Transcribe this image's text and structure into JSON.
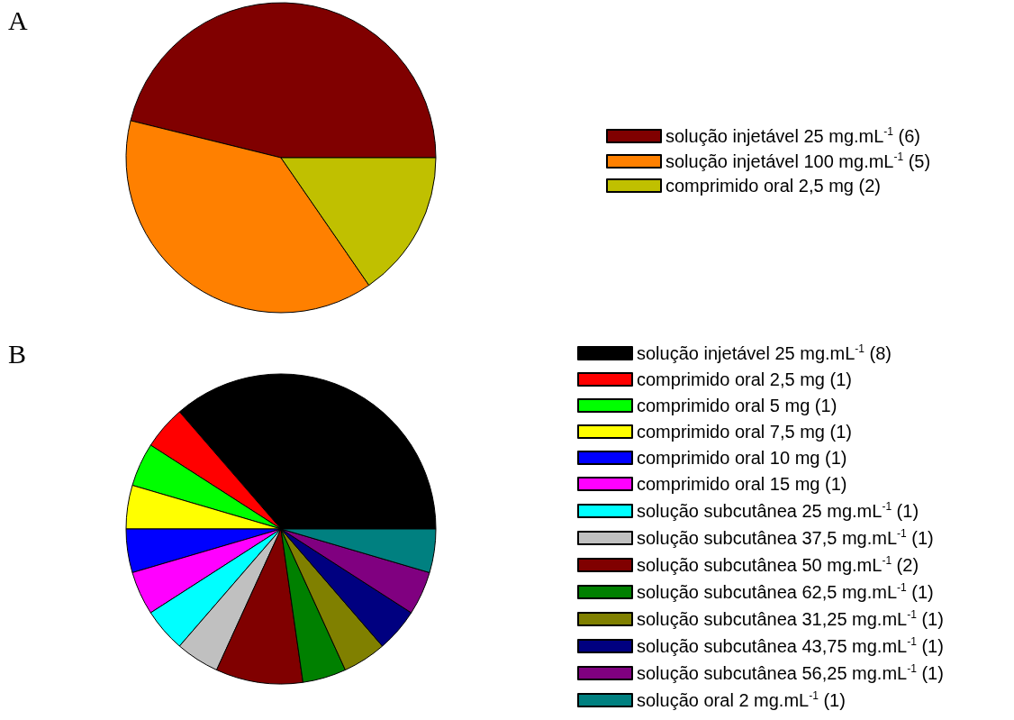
{
  "chart_data": [
    {
      "type": "pie",
      "title": "A",
      "legend": "right",
      "categories": [
        "solução injetável 25 mg.mL$^{-1}$ (6)",
        "solução injetável 100 mg.mL$^{-1}$ (5)",
        "comprimido oral 2,5 mg (2)"
      ],
      "values": [
        6,
        5,
        2
      ],
      "colors": [
        "#800000",
        "#ff8000",
        "#c0c000"
      ]
    },
    {
      "type": "pie",
      "title": "B",
      "legend": "right",
      "categories": [
        "solução injetável 25 mg.mL$^{-1}$ (8)",
        "comprimido oral 2,5 mg (1)",
        "comprimido oral 5 mg (1)",
        "comprimido oral 7,5 mg (1)",
        "comprimido oral 10 mg (1)",
        "comprimido oral 15 mg (1)",
        "solução subcutânea 25 mg.mL$^{-1}$ (1)",
        "solução subcutânea 37,5 mg.mL$^{-1}$ (1)",
        "solução subcutânea 50 mg.mL$^{-1}$ (2)",
        "solução subcutânea 62,5 mg.mL$^{-1}$ (1)",
        "solução subcutânea 31,25 mg.mL$^{-1}$ (1)",
        "solução subcutânea 43,75 mg.mL$^{-1}$ (1)",
        "solução subcutânea 56,25 mg.mL$^{-1}$ (1)",
        "solução oral 2 mg.mL$^{-1}$ (1)"
      ],
      "values": [
        8,
        1,
        1,
        1,
        1,
        1,
        1,
        1,
        2,
        1,
        1,
        1,
        1,
        1
      ],
      "colors": [
        "#000000",
        "#ff0000",
        "#00ff00",
        "#ffff00",
        "#0000ff",
        "#ff00ff",
        "#00ffff",
        "#c0c0c0",
        "#800000",
        "#008000",
        "#808000",
        "#000080",
        "#800080",
        "#008080"
      ]
    }
  ]
}
